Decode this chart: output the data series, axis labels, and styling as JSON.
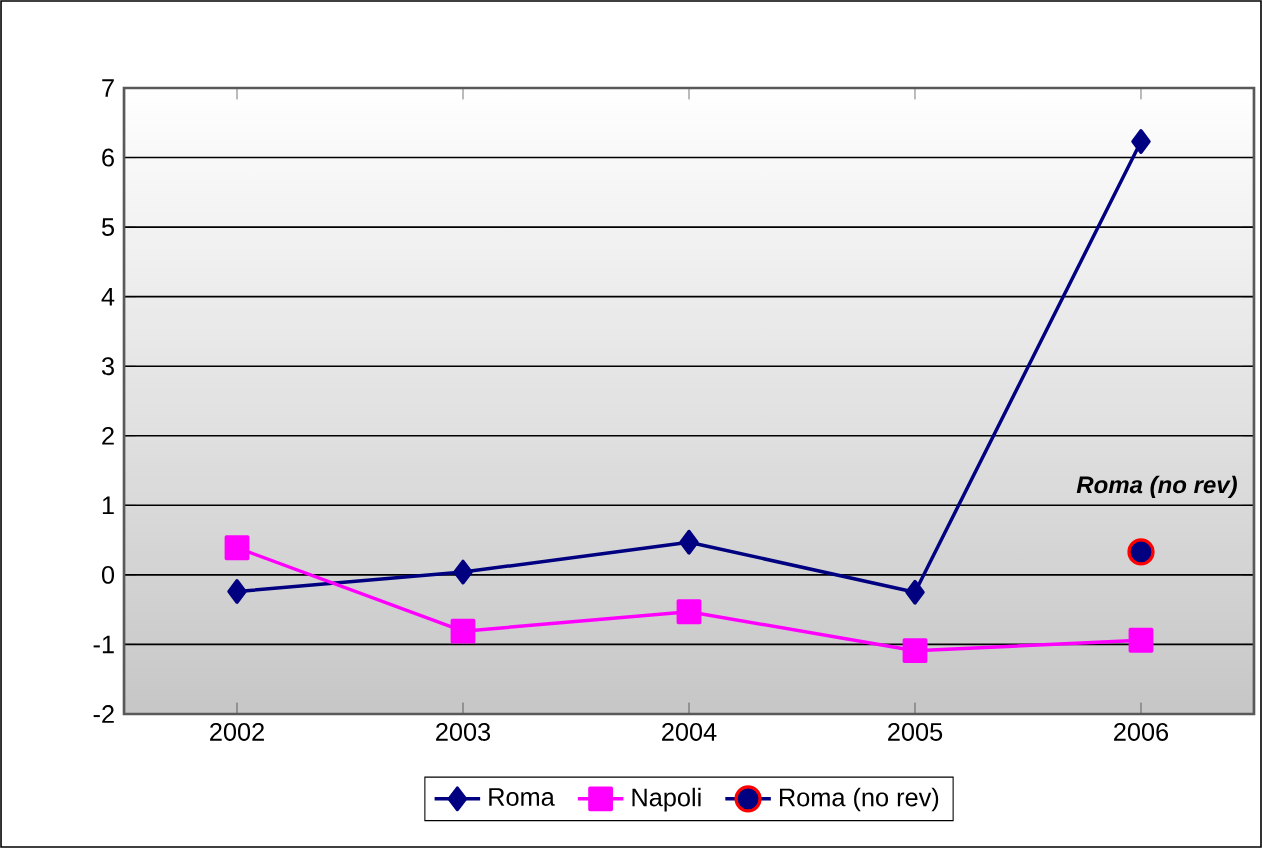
{
  "chart_data": {
    "type": "line",
    "categories": [
      "2002",
      "2003",
      "2004",
      "2005",
      "2006"
    ],
    "series": [
      {
        "name": "Roma",
        "color": "#000080",
        "marker": "diamond",
        "values": [
          -0.24,
          0.04,
          0.47,
          -0.25,
          6.23
        ]
      },
      {
        "name": "Napoli",
        "color": "#ff00ff",
        "marker": "square",
        "values": [
          0.39,
          -0.81,
          -0.53,
          -1.09,
          -0.94
        ]
      },
      {
        "name": "Roma (no rev)",
        "color": "#000080",
        "marker": "circle",
        "values": [
          null,
          null,
          null,
          null,
          0.33
        ]
      }
    ],
    "ylim": [
      -2,
      7
    ],
    "yticks": [
      -2,
      -1,
      0,
      1,
      2,
      3,
      4,
      5,
      6,
      7
    ],
    "annotations": [
      {
        "text": "Roma (no rev)",
        "x": "2006",
        "y": 0.33
      }
    ],
    "grid": "y",
    "legend": "bottom",
    "line_style": "solid"
  }
}
